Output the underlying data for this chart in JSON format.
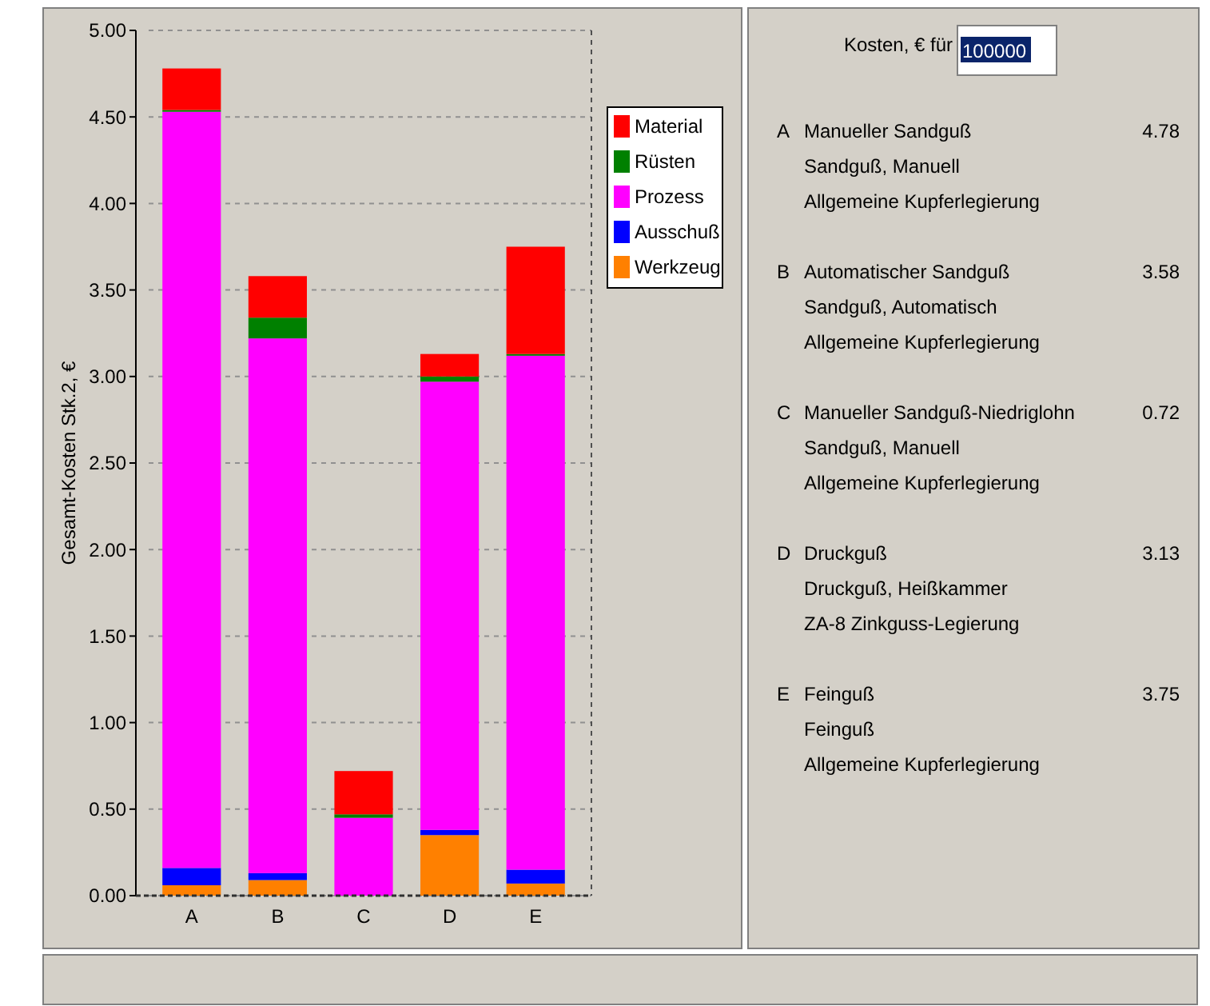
{
  "chart_data": {
    "type": "bar",
    "stacked": true,
    "ylabel": "Gesamt-Kosten Stk.2, €",
    "categories": [
      "A",
      "B",
      "C",
      "D",
      "E"
    ],
    "series": [
      {
        "name": "Werkzeug",
        "color": "#ff8000",
        "values": [
          0.06,
          0.09,
          0,
          0.35,
          0.07
        ]
      },
      {
        "name": "Ausschuß",
        "color": "#0000ff",
        "values": [
          0.1,
          0.04,
          0,
          0.03,
          0.08
        ]
      },
      {
        "name": "Prozess",
        "color": "#ff00ff",
        "values": [
          4.37,
          3.09,
          0.45,
          2.59,
          2.97
        ]
      },
      {
        "name": "Rüsten",
        "color": "#008000",
        "values": [
          0.01,
          0.12,
          0.02,
          0.03,
          0.01
        ]
      },
      {
        "name": "Material",
        "color": "#ff0000",
        "values": [
          0.24,
          0.24,
          0.25,
          0.13,
          0.62
        ]
      }
    ],
    "ylim": [
      0,
      5
    ],
    "yticks": [
      {
        "value": 0,
        "label": "0.00"
      },
      {
        "value": 0.5,
        "label": "0.50"
      },
      {
        "value": 1,
        "label": "1.00"
      },
      {
        "value": 1.5,
        "label": "1.50"
      },
      {
        "value": 2,
        "label": "2.00"
      },
      {
        "value": 2.5,
        "label": "2.50"
      },
      {
        "value": 3,
        "label": "3.00"
      },
      {
        "value": 3.5,
        "label": "3.50"
      },
      {
        "value": 4,
        "label": "4.00"
      },
      {
        "value": 4.5,
        "label": "4.50"
      },
      {
        "value": 5,
        "label": "5.00"
      }
    ],
    "grid": "y",
    "legend": "right",
    "annotations": [
      "Kosten, € für",
      "100000",
      "A",
      "Manueller Sandguß",
      "4.78",
      "Sandguß, Manuell",
      "Allgemeine Kupferlegierung",
      "B",
      "Automatischer Sandguß",
      "3.58",
      "Sandguß, Automatisch",
      "Allgemeine Kupferlegierung",
      "C",
      "Manueller Sandguß-Niedriglohn",
      "0.72",
      "Sandguß, Manuell",
      "Allgemeine Kupferlegierung",
      "D",
      "Druckguß",
      "3.13",
      "Druckguß, Heißkammer",
      "ZA-8 Zinkguss-Legierung",
      "E",
      "Feinguß",
      "3.75",
      "Feinguß",
      "Allgemeine Kupferlegierung"
    ]
  }
}
